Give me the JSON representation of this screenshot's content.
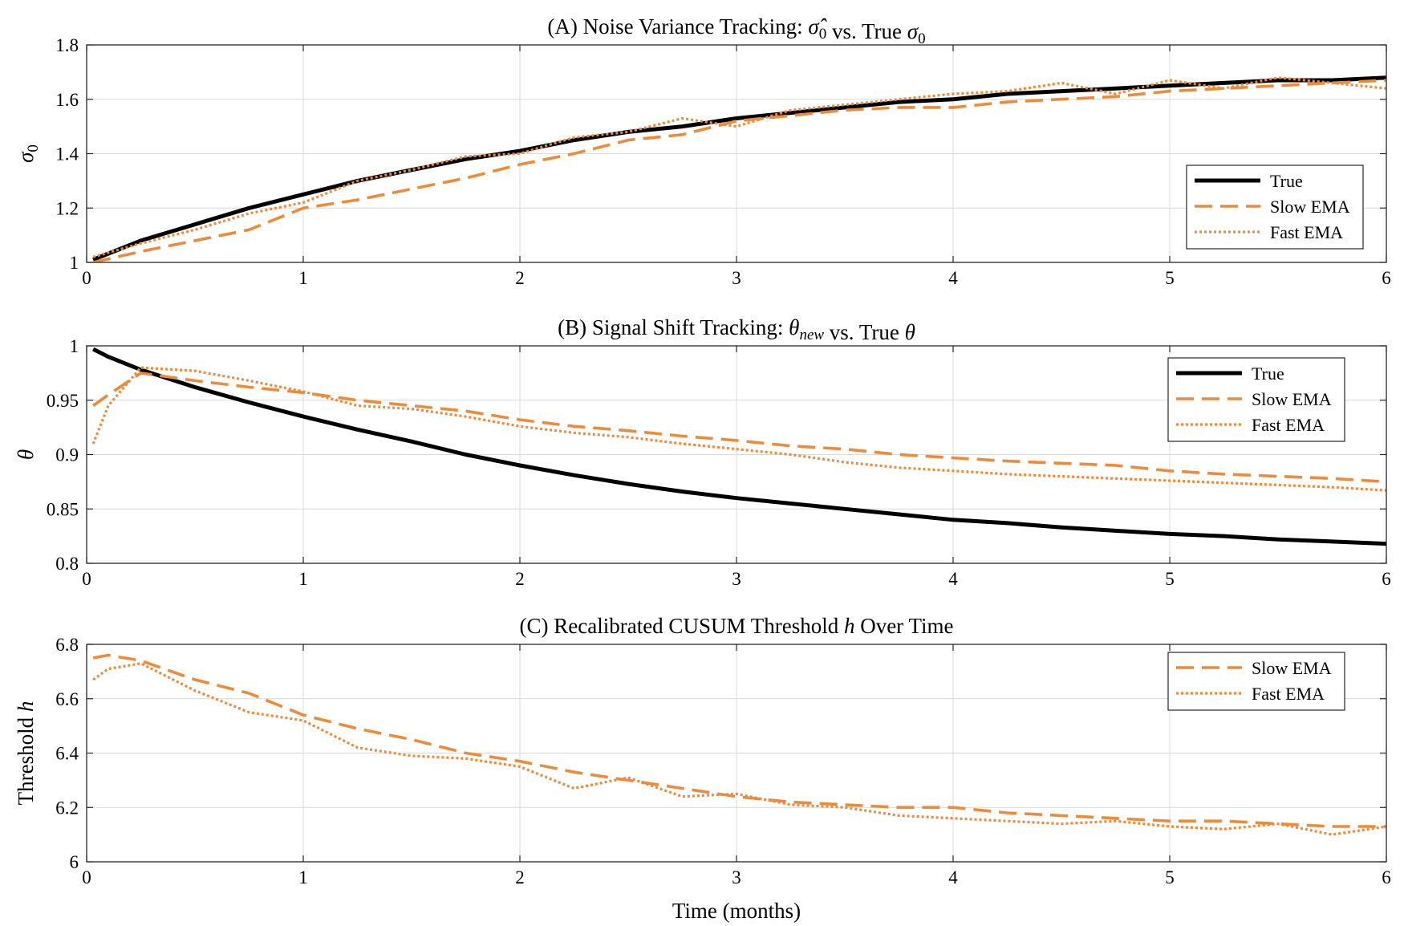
{
  "chart_data": [
    {
      "type": "line",
      "title_parts": [
        "(A) Noise Variance Tracking: ",
        "σ̂",
        "0",
        " vs.  True ",
        "σ",
        "0"
      ],
      "xlabel": "",
      "ylabel_parts": [
        "σ",
        "0"
      ],
      "xlim": [
        0,
        6
      ],
      "ylim": [
        1,
        1.8
      ],
      "xticks": [
        "0",
        "1",
        "2",
        "3",
        "4",
        "5",
        "6"
      ],
      "yticks": [
        "1",
        "1.2",
        "1.4",
        "1.6",
        "1.8"
      ],
      "grid": true,
      "legend": "right",
      "x": [
        0.03,
        0.25,
        0.5,
        0.75,
        1,
        1.25,
        1.5,
        1.75,
        2,
        2.25,
        2.5,
        2.75,
        3,
        3.25,
        3.5,
        3.75,
        4,
        4.25,
        4.5,
        4.75,
        5,
        5.25,
        5.5,
        5.75,
        6
      ],
      "series": [
        {
          "name": "True",
          "color": "#000000",
          "style": "solid",
          "values": [
            1.01,
            1.08,
            1.14,
            1.2,
            1.25,
            1.3,
            1.34,
            1.38,
            1.41,
            1.45,
            1.48,
            1.5,
            1.53,
            1.55,
            1.57,
            1.59,
            1.6,
            1.62,
            1.63,
            1.64,
            1.65,
            1.66,
            1.67,
            1.67,
            1.68
          ]
        },
        {
          "name": "Slow EMA",
          "color": "#ED8B3B",
          "style": "dashed",
          "values": [
            1.0,
            1.04,
            1.08,
            1.12,
            1.2,
            1.23,
            1.27,
            1.31,
            1.36,
            1.4,
            1.45,
            1.47,
            1.52,
            1.54,
            1.56,
            1.57,
            1.57,
            1.59,
            1.6,
            1.61,
            1.63,
            1.64,
            1.65,
            1.66,
            1.67
          ]
        },
        {
          "name": "Fast EMA",
          "color": "#ED8B3B",
          "style": "dotted",
          "values": [
            1.02,
            1.07,
            1.12,
            1.18,
            1.22,
            1.3,
            1.34,
            1.39,
            1.4,
            1.46,
            1.48,
            1.53,
            1.5,
            1.56,
            1.58,
            1.6,
            1.62,
            1.63,
            1.66,
            1.62,
            1.67,
            1.64,
            1.68,
            1.66,
            1.64
          ]
        }
      ]
    },
    {
      "type": "line",
      "title_parts": [
        "(B) Signal Shift Tracking: ",
        "θ",
        "new",
        " vs.  True ",
        "θ",
        ""
      ],
      "xlabel": "",
      "ylabel_parts": [
        "θ",
        ""
      ],
      "xlim": [
        0,
        6
      ],
      "ylim": [
        0.8,
        1
      ],
      "xticks": [
        "0",
        "1",
        "2",
        "3",
        "4",
        "5",
        "6"
      ],
      "yticks": [
        "0.8",
        "0.85",
        "0.9",
        "0.95",
        "1"
      ],
      "grid": true,
      "legend": "top-right",
      "x": [
        0.03,
        0.1,
        0.25,
        0.5,
        0.75,
        1,
        1.25,
        1.5,
        1.75,
        2,
        2.25,
        2.5,
        2.75,
        3,
        3.25,
        3.5,
        3.75,
        4,
        4.25,
        4.5,
        4.75,
        5,
        5.25,
        5.5,
        5.75,
        6
      ],
      "series": [
        {
          "name": "True",
          "color": "#000000",
          "style": "solid",
          "values": [
            0.997,
            0.99,
            0.978,
            0.962,
            0.948,
            0.935,
            0.923,
            0.912,
            0.9,
            0.89,
            0.881,
            0.873,
            0.866,
            0.86,
            0.855,
            0.85,
            0.845,
            0.84,
            0.837,
            0.833,
            0.83,
            0.827,
            0.825,
            0.822,
            0.82,
            0.818
          ]
        },
        {
          "name": "Slow EMA",
          "color": "#ED8B3B",
          "style": "dashed",
          "values": [
            0.945,
            0.955,
            0.975,
            0.968,
            0.962,
            0.957,
            0.95,
            0.945,
            0.94,
            0.932,
            0.926,
            0.922,
            0.917,
            0.913,
            0.908,
            0.905,
            0.9,
            0.897,
            0.894,
            0.892,
            0.89,
            0.885,
            0.882,
            0.88,
            0.878,
            0.875
          ]
        },
        {
          "name": "Fast EMA",
          "color": "#ED8B3B",
          "style": "dotted",
          "values": [
            0.91,
            0.945,
            0.98,
            0.977,
            0.968,
            0.958,
            0.945,
            0.942,
            0.935,
            0.926,
            0.92,
            0.916,
            0.91,
            0.905,
            0.9,
            0.893,
            0.888,
            0.885,
            0.882,
            0.88,
            0.878,
            0.876,
            0.874,
            0.872,
            0.87,
            0.867
          ]
        }
      ]
    },
    {
      "type": "line",
      "title_parts": [
        "(C) Recalibrated CUSUM Threshold ",
        "h",
        "",
        " Over Time",
        "",
        ""
      ],
      "xlabel": "Time (months)",
      "ylabel_parts": [
        "Threshold ",
        "h"
      ],
      "xlim": [
        0,
        6
      ],
      "ylim": [
        6,
        6.8
      ],
      "xticks": [
        "0",
        "1",
        "2",
        "3",
        "4",
        "5",
        "6"
      ],
      "yticks": [
        "6",
        "6.2",
        "6.4",
        "6.6",
        "6.8"
      ],
      "grid": true,
      "legend": "top-right",
      "x": [
        0.03,
        0.1,
        0.25,
        0.5,
        0.75,
        1,
        1.25,
        1.5,
        1.75,
        2,
        2.25,
        2.5,
        2.75,
        3,
        3.25,
        3.5,
        3.75,
        4,
        4.25,
        4.5,
        4.75,
        5,
        5.25,
        5.5,
        5.75,
        6
      ],
      "series": [
        {
          "name": "Slow EMA",
          "color": "#ED8B3B",
          "style": "dashed",
          "values": [
            6.75,
            6.76,
            6.74,
            6.67,
            6.62,
            6.54,
            6.49,
            6.45,
            6.4,
            6.37,
            6.33,
            6.3,
            6.27,
            6.24,
            6.22,
            6.21,
            6.2,
            6.2,
            6.18,
            6.17,
            6.16,
            6.15,
            6.15,
            6.14,
            6.13,
            6.13
          ]
        },
        {
          "name": "Fast EMA",
          "color": "#ED8B3B",
          "style": "dotted",
          "values": [
            6.67,
            6.71,
            6.73,
            6.63,
            6.55,
            6.52,
            6.42,
            6.39,
            6.38,
            6.35,
            6.27,
            6.31,
            6.24,
            6.25,
            6.21,
            6.2,
            6.17,
            6.16,
            6.15,
            6.14,
            6.15,
            6.13,
            6.12,
            6.14,
            6.1,
            6.13
          ]
        }
      ]
    }
  ]
}
